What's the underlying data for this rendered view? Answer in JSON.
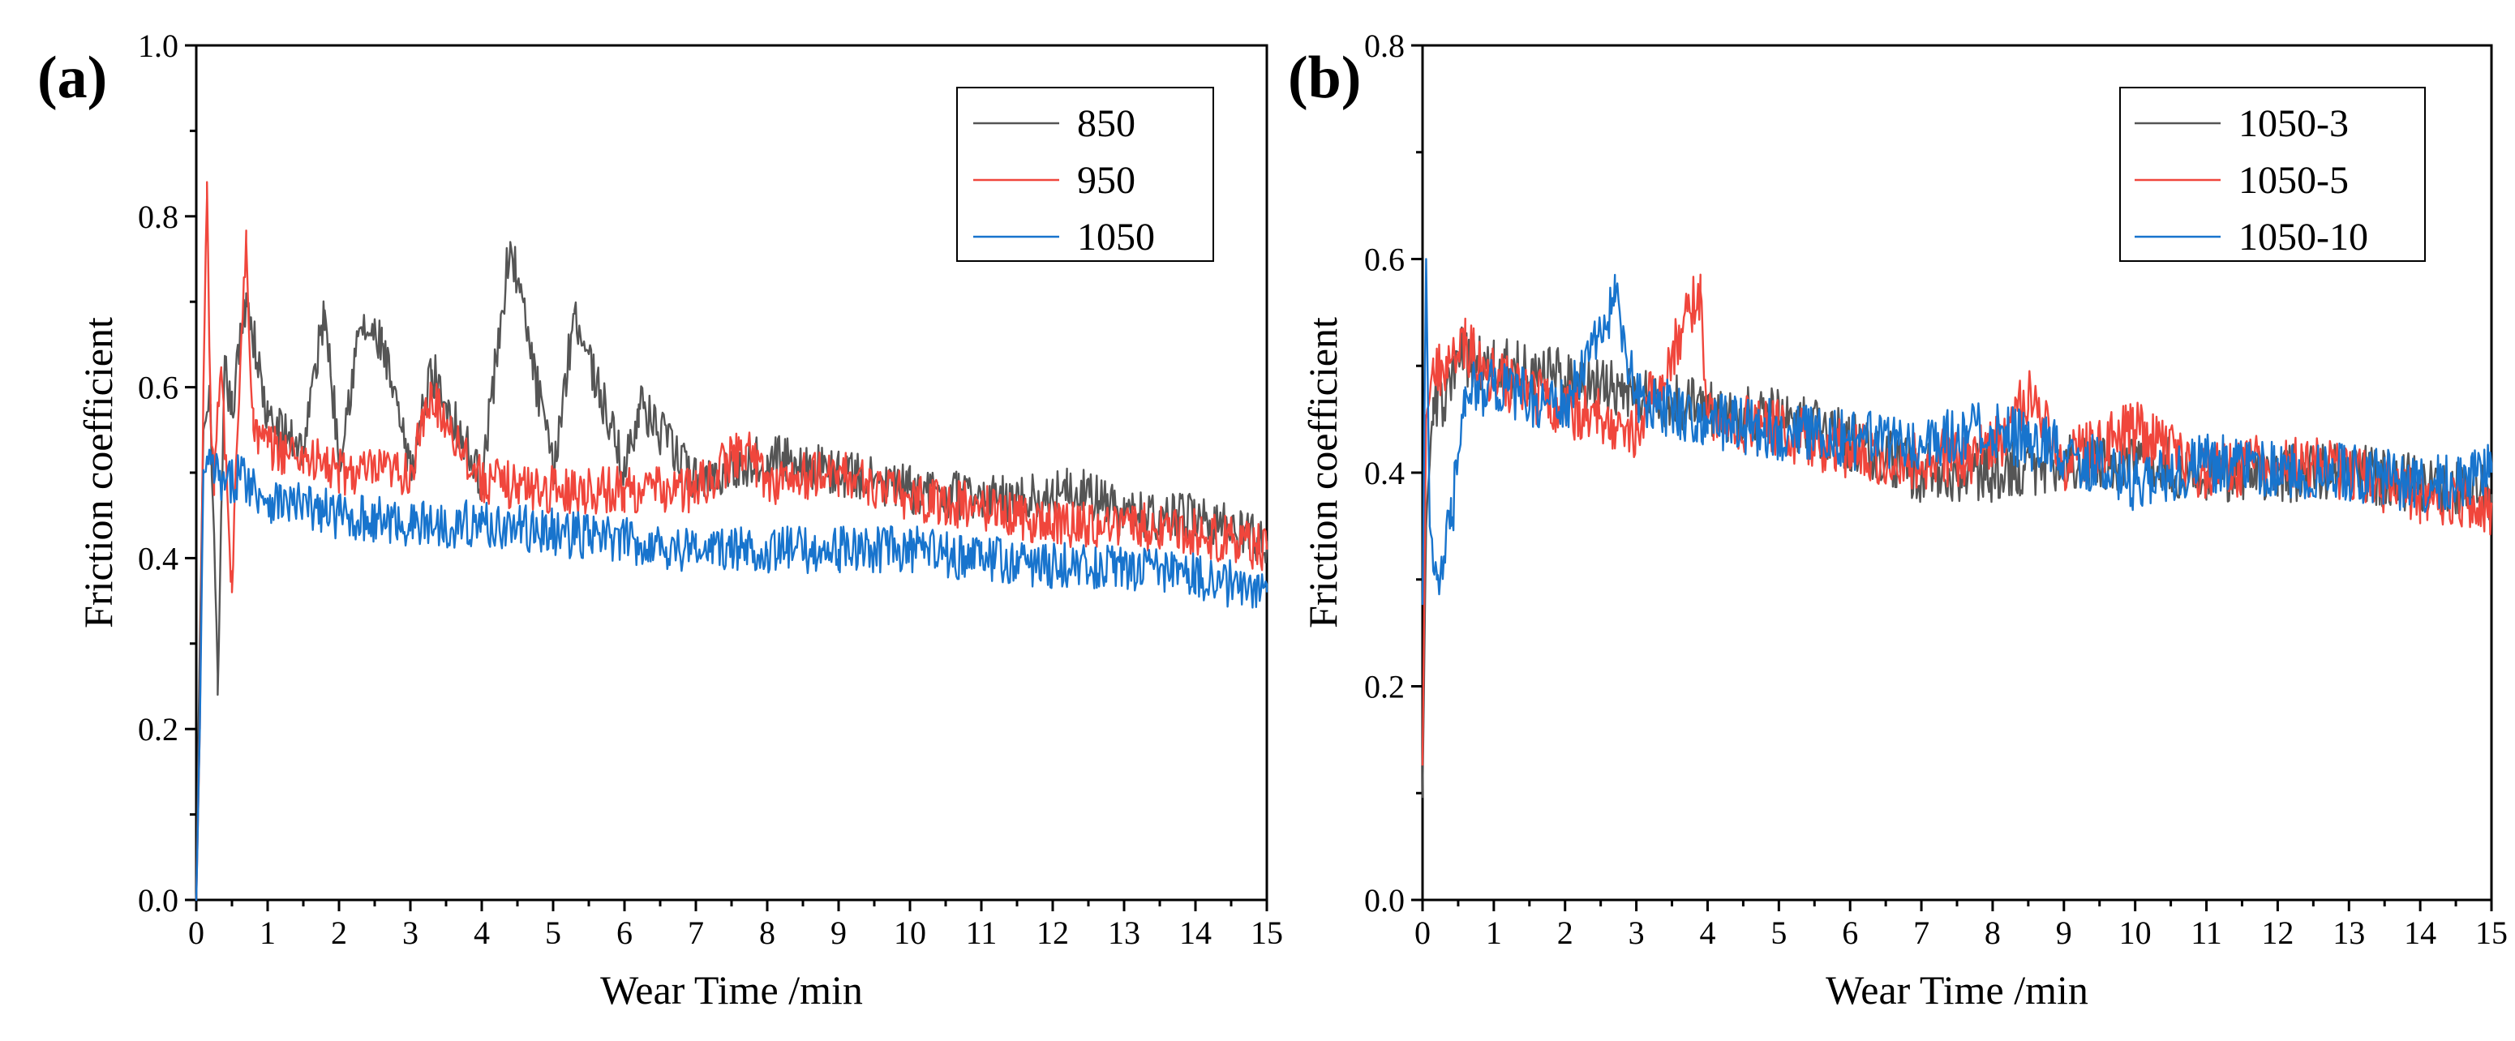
{
  "chart_data": [
    {
      "type": "line",
      "panel_label": "(a)",
      "xlabel": "Wear Time /min",
      "ylabel": "Friction coefficient",
      "xlim": [
        0,
        15
      ],
      "ylim": [
        0,
        1.0
      ],
      "x_ticks": [
        0,
        1,
        2,
        3,
        4,
        5,
        6,
        7,
        8,
        9,
        10,
        11,
        12,
        13,
        14,
        15
      ],
      "x_tick_labels": [
        "0",
        "1",
        "2",
        "3",
        "4",
        "5",
        "6",
        "7",
        "8",
        "9",
        "10",
        "11",
        "12",
        "13",
        "14",
        "15"
      ],
      "y_ticks": [
        0.0,
        0.2,
        0.4,
        0.6,
        0.8,
        1.0
      ],
      "y_tick_labels": [
        "0.0",
        "0.2",
        "0.4",
        "0.6",
        "0.8",
        "1.0"
      ],
      "legend_position": "top-right",
      "series": [
        {
          "name": "850",
          "color": "#555555",
          "x": [
            0,
            0.05,
            0.1,
            0.2,
            0.3,
            0.4,
            0.5,
            0.7,
            1,
            1.5,
            1.8,
            2,
            2.3,
            2.6,
            3,
            3.3,
            4,
            4.4,
            5,
            5.3,
            6,
            6.2,
            7,
            8,
            9,
            10,
            11,
            12,
            12.2,
            13,
            14,
            15
          ],
          "values": [
            0.0,
            0.3,
            0.55,
            0.58,
            0.24,
            0.62,
            0.57,
            0.71,
            0.56,
            0.53,
            0.69,
            0.52,
            0.67,
            0.65,
            0.5,
            0.62,
            0.49,
            0.77,
            0.5,
            0.69,
            0.5,
            0.58,
            0.49,
            0.52,
            0.5,
            0.48,
            0.47,
            0.47,
            0.49,
            0.45,
            0.45,
            0.42
          ]
        },
        {
          "name": "950",
          "color": "#f0463c",
          "x": [
            0,
            0.05,
            0.1,
            0.15,
            0.2,
            0.25,
            0.35,
            0.5,
            0.55,
            0.7,
            0.8,
            1,
            1.5,
            2,
            3,
            3.3,
            4,
            5,
            6,
            7,
            7.7,
            8,
            9,
            10,
            11,
            12,
            13,
            14,
            15
          ],
          "values": [
            0.0,
            0.2,
            0.6,
            0.84,
            0.56,
            0.5,
            0.62,
            0.36,
            0.5,
            0.77,
            0.55,
            0.53,
            0.52,
            0.5,
            0.5,
            0.59,
            0.49,
            0.48,
            0.48,
            0.48,
            0.53,
            0.49,
            0.5,
            0.47,
            0.46,
            0.44,
            0.44,
            0.43,
            0.41
          ]
        },
        {
          "name": "1050",
          "color": "#1874cd",
          "x": [
            0,
            0.05,
            0.1,
            0.2,
            0.4,
            0.6,
            1,
            2,
            3,
            4,
            5,
            6,
            7,
            8,
            9,
            10,
            11,
            12,
            13,
            14,
            15
          ],
          "values": [
            0.0,
            0.2,
            0.5,
            0.51,
            0.48,
            0.5,
            0.47,
            0.45,
            0.44,
            0.44,
            0.43,
            0.42,
            0.41,
            0.41,
            0.41,
            0.41,
            0.4,
            0.39,
            0.39,
            0.38,
            0.36
          ]
        }
      ]
    },
    {
      "type": "line",
      "panel_label": "(b)",
      "xlabel": "Wear Time /min",
      "ylabel": "Friction coefficient",
      "xlim": [
        0,
        15
      ],
      "ylim": [
        0,
        0.8
      ],
      "x_ticks": [
        0,
        1,
        2,
        3,
        4,
        5,
        6,
        7,
        8,
        9,
        10,
        11,
        12,
        13,
        14,
        15
      ],
      "x_tick_labels": [
        "0",
        "1",
        "2",
        "3",
        "4",
        "5",
        "6",
        "7",
        "8",
        "9",
        "10",
        "11",
        "12",
        "13",
        "14",
        "15"
      ],
      "y_ticks": [
        0.0,
        0.2,
        0.4,
        0.6,
        0.8
      ],
      "y_tick_labels": [
        "0.0",
        "0.2",
        "0.4",
        "0.6",
        "0.8"
      ],
      "legend_position": "top-right",
      "series": [
        {
          "name": "1050-3",
          "color": "#555555",
          "x": [
            0,
            0.05,
            0.15,
            0.3,
            0.5,
            1,
            2,
            3,
            4,
            5,
            6,
            7,
            7.5,
            8,
            9,
            10,
            11,
            12,
            13,
            14,
            15
          ],
          "values": [
            0.1,
            0.35,
            0.47,
            0.46,
            0.51,
            0.5,
            0.49,
            0.47,
            0.46,
            0.45,
            0.43,
            0.4,
            0.4,
            0.4,
            0.41,
            0.41,
            0.4,
            0.4,
            0.4,
            0.39,
            0.38
          ]
        },
        {
          "name": "1050-5",
          "color": "#f0463c",
          "x": [
            0,
            0.05,
            0.15,
            0.3,
            0.6,
            1,
            2,
            3,
            3.9,
            4,
            5,
            6,
            7,
            8,
            8.5,
            9,
            10,
            11,
            12,
            13,
            14,
            15
          ],
          "values": [
            0.13,
            0.45,
            0.5,
            0.49,
            0.52,
            0.49,
            0.46,
            0.44,
            0.57,
            0.45,
            0.44,
            0.42,
            0.41,
            0.42,
            0.47,
            0.41,
            0.44,
            0.4,
            0.41,
            0.4,
            0.38,
            0.37
          ]
        },
        {
          "name": "1050-10",
          "color": "#1874cd",
          "x": [
            0,
            0.05,
            0.1,
            0.2,
            0.4,
            0.6,
            1,
            2,
            2.7,
            3,
            4,
            5,
            6,
            7,
            8,
            9,
            10,
            11,
            12,
            13,
            14,
            15
          ],
          "values": [
            0.28,
            0.6,
            0.35,
            0.3,
            0.35,
            0.48,
            0.48,
            0.46,
            0.56,
            0.47,
            0.45,
            0.44,
            0.43,
            0.43,
            0.44,
            0.42,
            0.39,
            0.41,
            0.4,
            0.4,
            0.39,
            0.4
          ]
        }
      ]
    }
  ]
}
